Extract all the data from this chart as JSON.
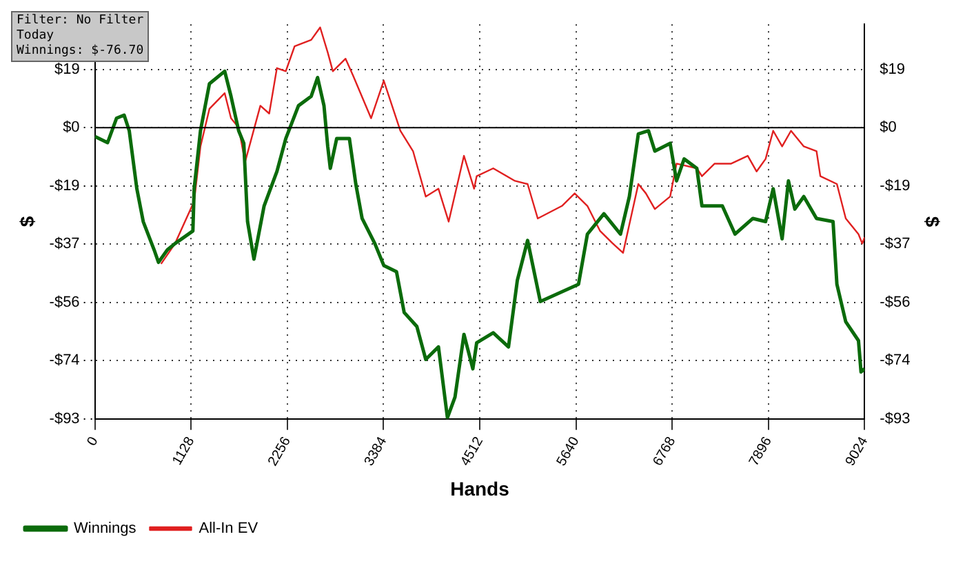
{
  "chart_data": {
    "type": "line",
    "xlabel": "Hands",
    "ylabel": "$",
    "y2label": "$",
    "annotations": [
      "Filter: No Filter",
      "Today",
      "Winnings: $-76.70"
    ],
    "xlim": [
      0,
      9024
    ],
    "xticks": [
      0,
      1128,
      2256,
      3384,
      4512,
      5640,
      6768,
      7896,
      9024
    ],
    "ylim": [
      -93,
      33
    ],
    "yticks": [
      {
        "value": 18.6,
        "label": "$19"
      },
      {
        "value": 0,
        "label": "$0"
      },
      {
        "value": -18.6,
        "label": "-$19"
      },
      {
        "value": -37.2,
        "label": "-$37"
      },
      {
        "value": -55.8,
        "label": "-$56"
      },
      {
        "value": -74.4,
        "label": "-$74"
      },
      {
        "value": -93,
        "label": "-$93"
      }
    ],
    "y2lim": [
      -93,
      33
    ],
    "y2ticks": [
      {
        "value": 18.6,
        "label": "$19"
      },
      {
        "value": 0,
        "label": "$0"
      },
      {
        "value": -18.6,
        "label": "-$19"
      },
      {
        "value": -37.2,
        "label": "-$37"
      },
      {
        "value": -55.8,
        "label": "-$56"
      },
      {
        "value": -74.4,
        "label": "-$74"
      },
      {
        "value": -93,
        "label": "-$93"
      }
    ],
    "grid": true,
    "legend": "bottom left",
    "marker": "none",
    "line_style": "solid",
    "ref_lines": [
      {
        "axis": "y",
        "value": 0,
        "color": "#000000"
      }
    ],
    "series": [
      {
        "name": "All-In EV",
        "color": "#e02020",
        "x": [
          776,
          940,
          1164,
          1238,
          1343,
          1522,
          1596,
          1686,
          1761,
          1940,
          2044,
          2134,
          2238,
          2342,
          2536,
          2641,
          2730,
          2790,
          2939,
          3029,
          3238,
          3387,
          3581,
          3730,
          3879,
          4028,
          4148,
          4327,
          4446,
          4476,
          4670,
          4924,
          5073,
          5192,
          5476,
          5625,
          5774,
          5923,
          6072,
          6192,
          6371,
          6460,
          6565,
          6744,
          6819,
          7057,
          7117,
          7266,
          7460,
          7654,
          7758,
          7863,
          7952,
          8057,
          8161,
          8311,
          8460,
          8505,
          8699,
          8803,
          8952,
          8996,
          9024
        ],
        "values": [
          -43.5,
          -37,
          -23.5,
          -6,
          6,
          11,
          3,
          0,
          -11,
          7,
          4.5,
          19,
          18,
          26,
          28,
          32,
          24,
          18,
          22,
          16.5,
          3,
          15,
          -1,
          -7.5,
          -22,
          -19.5,
          -30,
          -9,
          -19.5,
          -15.5,
          -13,
          -17,
          -18,
          -29,
          -25,
          -21,
          -25,
          -33,
          -37,
          -40,
          -18,
          -21,
          -26,
          -22,
          -11.5,
          -13,
          -15.5,
          -11.5,
          -11.5,
          -9,
          -14,
          -10,
          -1,
          -6,
          -1,
          -6,
          -7.5,
          -15.5,
          -18,
          -29,
          -34,
          -37,
          -35
        ]
      },
      {
        "name": "Winnings",
        "color": "#0b6b0b",
        "x": [
          0,
          149,
          254,
          343,
          403,
          492,
          567,
          701,
          746,
          850,
          940,
          1149,
          1164,
          1238,
          1343,
          1522,
          1596,
          1686,
          1746,
          1790,
          1865,
          1984,
          2134,
          2238,
          2387,
          2536,
          2611,
          2686,
          2730,
          2760,
          2835,
          2984,
          3059,
          3133,
          3282,
          3387,
          3536,
          3626,
          3775,
          3879,
          4028,
          4133,
          4222,
          4327,
          4431,
          4476,
          4670,
          4849,
          4953,
          5073,
          5222,
          5670,
          5774,
          5968,
          6162,
          6266,
          6371,
          6490,
          6565,
          6744,
          6819,
          6908,
          7057,
          7117,
          7356,
          7505,
          7714,
          7863,
          7952,
          8057,
          8131,
          8206,
          8311,
          8460,
          8654,
          8699,
          8803,
          8952,
          8982,
          9024
        ],
        "values": [
          -2.8,
          -4.8,
          3,
          4,
          -1,
          -19.5,
          -30,
          -39.5,
          -43,
          -39,
          -37,
          -33,
          -19.5,
          -1,
          14,
          18,
          10,
          -1,
          -5,
          -30,
          -42,
          -25,
          -14,
          -3.5,
          7,
          10,
          16,
          7,
          -6,
          -13,
          -3.5,
          -3.5,
          -18,
          -29,
          -37,
          -44,
          -46,
          -59,
          -63.5,
          -74,
          -70,
          -92.6,
          -86,
          -66,
          -77,
          -68.7,
          -65.5,
          -70,
          -48.7,
          -36,
          -55.5,
          -50,
          -34,
          -27.5,
          -34,
          -22,
          -2,
          -1,
          -7.5,
          -5,
          -17,
          -10,
          -13,
          -25,
          -25,
          -34,
          -29,
          -30,
          -19.5,
          -35.5,
          -17,
          -26,
          -22,
          -29,
          -30,
          -50,
          -62,
          -68,
          -78,
          -77
        ]
      }
    ]
  }
}
